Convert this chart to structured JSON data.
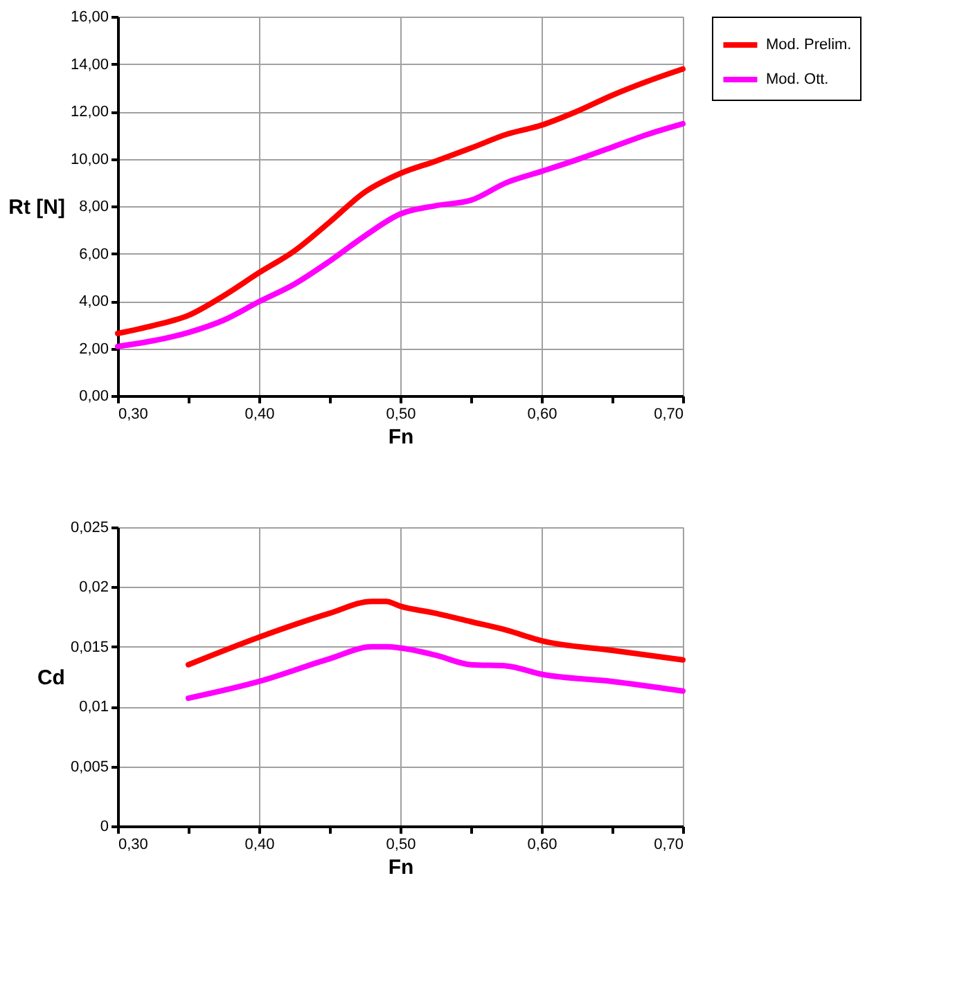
{
  "chart_data": [
    {
      "type": "line",
      "xlabel": "Fn",
      "ylabel": "Rt [N]",
      "x": [
        0.3,
        0.325,
        0.35,
        0.375,
        0.4,
        0.425,
        0.45,
        0.475,
        0.5,
        0.525,
        0.55,
        0.575,
        0.6,
        0.625,
        0.65,
        0.675,
        0.7
      ],
      "series": [
        {
          "name": "Mod. Prelim.",
          "color": "#ff0000",
          "values": [
            2.63,
            2.96,
            3.39,
            4.22,
            5.19,
            6.11,
            7.33,
            8.6,
            9.38,
            9.9,
            10.45,
            11.03,
            11.42,
            12.0,
            12.68,
            13.27,
            13.79
          ]
        },
        {
          "name": "Mod. Ott.",
          "color": "#ff00ff",
          "values": [
            2.08,
            2.32,
            2.67,
            3.19,
            3.97,
            4.71,
            5.68,
            6.75,
            7.67,
            8.02,
            8.25,
            8.99,
            9.47,
            9.96,
            10.49,
            11.03,
            11.48
          ]
        }
      ],
      "xlim": [
        0.3,
        0.7
      ],
      "xticks": [
        {
          "value": 0.3,
          "label": "0,30"
        },
        {
          "value": 0.35,
          "label": null
        },
        {
          "value": 0.4,
          "label": "0,40"
        },
        {
          "value": 0.45,
          "label": null
        },
        {
          "value": 0.5,
          "label": "0,50"
        },
        {
          "value": 0.55,
          "label": null
        },
        {
          "value": 0.6,
          "label": "0,60"
        },
        {
          "value": 0.65,
          "label": null
        },
        {
          "value": 0.7,
          "label": "0,70"
        }
      ],
      "ylim": [
        0,
        16
      ],
      "yticks": [
        {
          "value": 0,
          "label": "0,00"
        },
        {
          "value": 2,
          "label": "2,00"
        },
        {
          "value": 4,
          "label": "4,00"
        },
        {
          "value": 6,
          "label": "6,00"
        },
        {
          "value": 8,
          "label": "8,00"
        },
        {
          "value": 10,
          "label": "10,00"
        },
        {
          "value": 12,
          "label": "12,00"
        },
        {
          "value": 14,
          "label": "14,00"
        },
        {
          "value": 16,
          "label": "16,00"
        }
      ],
      "grid": true,
      "legend": "right",
      "marker": "none",
      "line_style": "solid"
    },
    {
      "type": "line",
      "xlabel": "Fn",
      "ylabel": "Cd",
      "x": [
        0.35,
        0.4,
        0.45,
        0.48,
        0.49,
        0.5,
        0.525,
        0.55,
        0.575,
        0.6,
        0.65,
        0.7
      ],
      "series": [
        {
          "name": "Mod. Prelim.",
          "color": "#ff0000",
          "values": [
            0.0135,
            0.0158,
            0.0178,
            0.0188,
            0.0188,
            0.0184,
            0.0178,
            0.0171,
            0.0164,
            0.0155,
            0.0147,
            0.0139
          ]
        },
        {
          "name": "Mod. Ott.",
          "color": "#ff00ff",
          "values": [
            0.0107,
            0.0121,
            0.014,
            0.015,
            0.015,
            0.0149,
            0.0143,
            0.0135,
            0.0134,
            0.0127,
            0.0121,
            0.0113
          ]
        }
      ],
      "xlim": [
        0.3,
        0.7
      ],
      "xticks": [
        {
          "value": 0.3,
          "label": "0,30"
        },
        {
          "value": 0.35,
          "label": null
        },
        {
          "value": 0.4,
          "label": "0,40"
        },
        {
          "value": 0.45,
          "label": null
        },
        {
          "value": 0.5,
          "label": "0,50"
        },
        {
          "value": 0.55,
          "label": null
        },
        {
          "value": 0.6,
          "label": "0,60"
        },
        {
          "value": 0.65,
          "label": null
        },
        {
          "value": 0.7,
          "label": "0,70"
        }
      ],
      "ylim": [
        0,
        0.025
      ],
      "yticks": [
        0,
        {
          "value": 0.005,
          "label": "0,005"
        },
        {
          "value": 0.01,
          "label": "0,01"
        },
        {
          "value": 0.015,
          "label": "0,015"
        },
        {
          "value": 0.02,
          "label": "0,02"
        },
        {
          "value": 0.025,
          "label": "0,025"
        }
      ],
      "grid": true,
      "legend": "right",
      "marker": "none",
      "line_style": "solid"
    }
  ]
}
